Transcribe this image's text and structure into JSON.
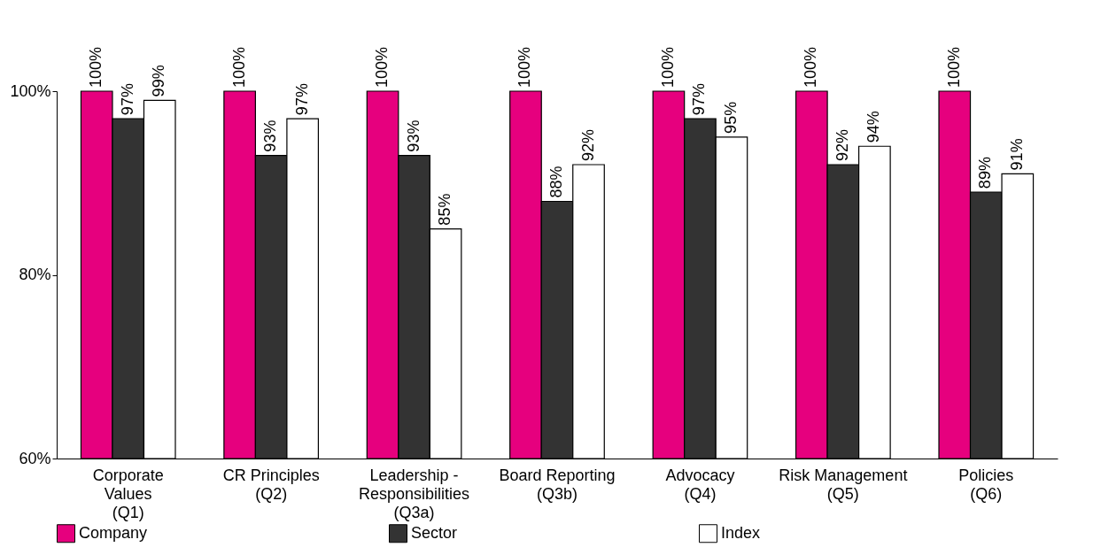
{
  "chart_data": {
    "type": "bar",
    "categories": [
      "Corporate Values (Q1)",
      "CR Principles (Q2)",
      "Leadership - Responsibilities (Q3a)",
      "Board Reporting (Q3b)",
      "Advocacy (Q4)",
      "Risk Management (Q5)",
      "Policies (Q6)"
    ],
    "series": [
      {
        "name": "Company",
        "color": "#e6007e",
        "values": [
          100,
          100,
          100,
          100,
          100,
          100,
          100
        ],
        "value_labels": [
          "100%",
          "100%",
          "100%",
          "100%",
          "100%",
          "100%",
          "100%"
        ]
      },
      {
        "name": "Sector",
        "color": "#333333",
        "values": [
          97,
          93,
          93,
          88,
          97,
          92,
          89
        ],
        "value_labels": [
          "97%",
          "93%",
          "93%",
          "88%",
          "97%",
          "92%",
          "89%"
        ]
      },
      {
        "name": "Index",
        "color": "#ffffff",
        "values": [
          99,
          97,
          85,
          92,
          95,
          94,
          91
        ],
        "value_labels": [
          "99%",
          "97%",
          "85%",
          "92%",
          "95%",
          "94%",
          "91%"
        ]
      }
    ],
    "ylim": [
      60,
      100
    ],
    "yticks": [
      {
        "value": 60,
        "label": "60%"
      },
      {
        "value": 80,
        "label": "80%"
      },
      {
        "value": 100,
        "label": "100%"
      }
    ],
    "legend": "bottom"
  }
}
